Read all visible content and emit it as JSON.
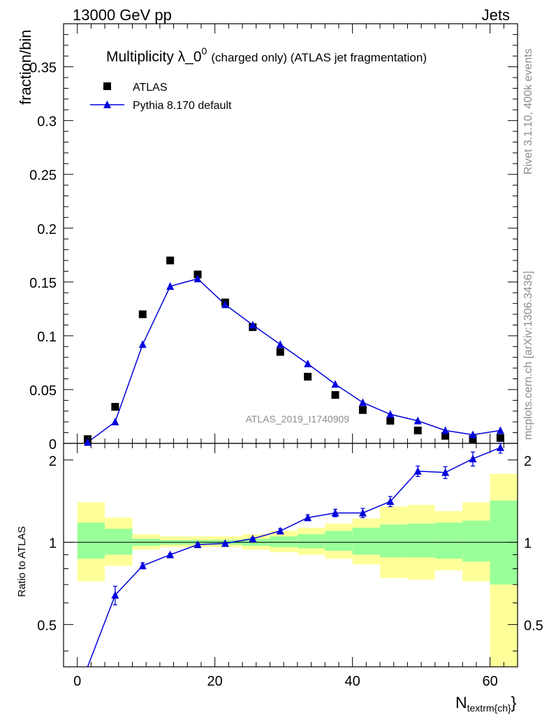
{
  "header": {
    "left": "13000 GeV pp",
    "right": "Jets"
  },
  "side_labels": {
    "rivet": "Rivet 3.1.10,  400k events",
    "mcplots": "mcplots.cern.ch [arXiv:1306.3436]"
  },
  "chart_data": {
    "type": "scatter",
    "title": "Multiplicity λ_0",
    "title_sup": "0",
    "title_suffix": "(charged only) (ATLAS jet fragmentation)",
    "analysis_id": "ATLAS_2019_I1740909",
    "xlabel": "N",
    "xlabel_sub": "textrm{ch}",
    "xlabel_close": "}",
    "ylabel": "fraction/bin",
    "ratio_ylabel": "Ratio to ATLAS",
    "xlim": [
      -2,
      64
    ],
    "ylim": [
      0,
      0.39
    ],
    "ratio_ylim": [
      0.35,
      2.3
    ],
    "x_ticks": [
      0,
      20,
      40,
      60
    ],
    "x_tick_labels": [
      "0",
      "20",
      "40",
      "60"
    ],
    "y_ticks": [
      0,
      0.05,
      0.1,
      0.15,
      0.2,
      0.25,
      0.3,
      0.35
    ],
    "y_tick_labels": [
      "0",
      "0.05",
      "0.1",
      "0.15",
      "0.2",
      "0.25",
      "0.3",
      "0.35"
    ],
    "ratio_ticks": [
      0.5,
      1,
      2
    ],
    "ratio_tick_labels": [
      "0.5",
      "1",
      "2"
    ],
    "bin_edges": [
      0,
      4,
      8,
      12,
      16,
      20,
      24,
      28,
      32,
      36,
      40,
      44,
      48,
      52,
      56,
      60,
      64
    ],
    "x": [
      1.5,
      5.5,
      9.5,
      13.5,
      17.5,
      21.5,
      25.5,
      29.5,
      33.5,
      37.5,
      41.5,
      45.5,
      49.5,
      53.5,
      57.5,
      61.5
    ],
    "legend": [
      {
        "label": "ATLAS",
        "marker": "square",
        "color": "#000000"
      },
      {
        "label": "Pythia 8.170 default",
        "marker": "triangle",
        "color": "#0000dd"
      }
    ],
    "series": [
      {
        "name": "ATLAS",
        "color": "#000000",
        "values": [
          0.004,
          0.034,
          0.12,
          0.17,
          0.157,
          0.131,
          0.108,
          0.085,
          0.062,
          0.045,
          0.031,
          0.021,
          0.012,
          0.007,
          0.004,
          0.005
        ]
      },
      {
        "name": "Pythia 8.170 default",
        "color": "#0000dd",
        "values": [
          0.001,
          0.02,
          0.092,
          0.146,
          0.153,
          0.129,
          0.11,
          0.092,
          0.074,
          0.055,
          0.038,
          0.027,
          0.021,
          0.012,
          0.008,
          0.012
        ],
        "ratio": [
          0.2,
          0.64,
          0.82,
          0.9,
          0.98,
          0.99,
          1.03,
          1.1,
          1.23,
          1.28,
          1.28,
          1.41,
          1.82,
          1.8,
          2.02,
          2.22
        ],
        "ratio_err": [
          0.0,
          0.05,
          0.02,
          0.01,
          0.01,
          0.01,
          0.01,
          0.02,
          0.03,
          0.04,
          0.05,
          0.06,
          0.08,
          0.09,
          0.12,
          0.1
        ]
      }
    ],
    "bands": {
      "inner_color": "#99ff99",
      "outer_color": "#ffff99",
      "inner": [
        [
          0.87,
          1.18
        ],
        [
          0.9,
          1.12
        ],
        [
          0.97,
          1.03
        ],
        [
          0.98,
          1.02
        ],
        [
          0.98,
          1.02
        ],
        [
          0.98,
          1.02
        ],
        [
          0.97,
          1.03
        ],
        [
          0.96,
          1.05
        ],
        [
          0.95,
          1.07
        ],
        [
          0.93,
          1.1
        ],
        [
          0.9,
          1.13
        ],
        [
          0.88,
          1.16
        ],
        [
          0.88,
          1.17
        ],
        [
          0.87,
          1.18
        ],
        [
          0.85,
          1.2
        ],
        [
          0.7,
          1.42
        ]
      ],
      "outer": [
        [
          0.72,
          1.4
        ],
        [
          0.82,
          1.23
        ],
        [
          0.94,
          1.07
        ],
        [
          0.96,
          1.05
        ],
        [
          0.96,
          1.05
        ],
        [
          0.96,
          1.05
        ],
        [
          0.94,
          1.07
        ],
        [
          0.92,
          1.1
        ],
        [
          0.9,
          1.13
        ],
        [
          0.87,
          1.17
        ],
        [
          0.83,
          1.22
        ],
        [
          0.74,
          1.35
        ],
        [
          0.73,
          1.37
        ],
        [
          0.79,
          1.3
        ],
        [
          0.72,
          1.4
        ],
        [
          0.35,
          1.78
        ]
      ]
    }
  }
}
